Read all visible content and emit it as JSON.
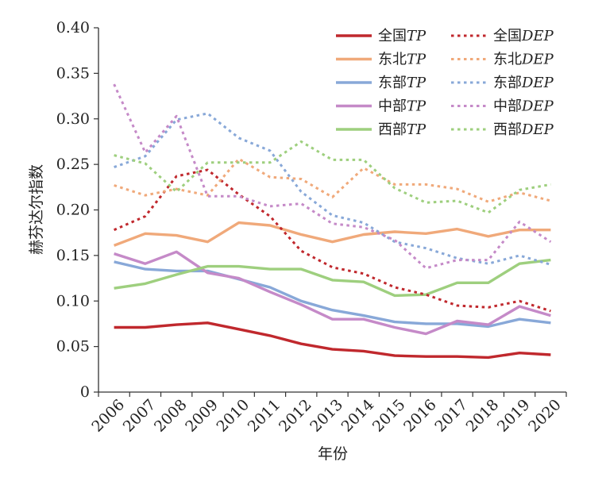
{
  "chart_data": {
    "type": "line",
    "title": "",
    "xlabel": "年份",
    "ylabel": "赫芬达尔指数",
    "ylim": [
      0,
      0.4
    ],
    "yticks": [
      "0",
      "0.05",
      "0.10",
      "0.15",
      "0.20",
      "0.25",
      "0.30",
      "0.35",
      "0.40"
    ],
    "grid": false,
    "legend_position": "top-right",
    "categories": [
      "2006",
      "2007",
      "2008",
      "2009",
      "2010",
      "2011",
      "2012",
      "2013",
      "2014",
      "2015",
      "2016",
      "2017",
      "2018",
      "2019",
      "2020"
    ],
    "series": [
      {
        "name": "全国TP",
        "region": "全国",
        "suffix": "TP",
        "color": "#c0282d",
        "dashed": false,
        "values": [
          0.071,
          0.071,
          0.074,
          0.076,
          0.069,
          0.062,
          0.053,
          0.047,
          0.045,
          0.04,
          0.039,
          0.039,
          0.038,
          0.043,
          0.041
        ]
      },
      {
        "name": "全国DEP",
        "region": "全国",
        "suffix": "DEP",
        "color": "#c0282d",
        "dashed": true,
        "values": [
          0.178,
          0.193,
          0.237,
          0.244,
          0.217,
          0.193,
          0.155,
          0.137,
          0.13,
          0.115,
          0.107,
          0.095,
          0.093,
          0.1,
          0.089
        ]
      },
      {
        "name": "东北TP",
        "region": "东北",
        "suffix": "TP",
        "color": "#f0a97a",
        "dashed": false,
        "values": [
          0.161,
          0.174,
          0.172,
          0.165,
          0.186,
          0.183,
          0.173,
          0.165,
          0.173,
          0.176,
          0.174,
          0.179,
          0.171,
          0.178,
          0.178
        ]
      },
      {
        "name": "东北DEP",
        "region": "东北",
        "suffix": "DEP",
        "color": "#f0a97a",
        "dashed": true,
        "values": [
          0.227,
          0.216,
          0.223,
          0.216,
          0.256,
          0.236,
          0.234,
          0.214,
          0.246,
          0.228,
          0.228,
          0.223,
          0.209,
          0.219,
          0.21
        ]
      },
      {
        "name": "东部TP",
        "region": "东部",
        "suffix": "TP",
        "color": "#88a8d8",
        "dashed": false,
        "values": [
          0.143,
          0.135,
          0.133,
          0.133,
          0.124,
          0.115,
          0.1,
          0.09,
          0.084,
          0.077,
          0.075,
          0.075,
          0.072,
          0.08,
          0.076
        ]
      },
      {
        "name": "东部DEP",
        "region": "东部",
        "suffix": "DEP",
        "color": "#88a8d8",
        "dashed": true,
        "values": [
          0.247,
          0.259,
          0.299,
          0.306,
          0.279,
          0.265,
          0.22,
          0.194,
          0.186,
          0.165,
          0.158,
          0.147,
          0.141,
          0.15,
          0.14
        ]
      },
      {
        "name": "中部TP",
        "region": "中部",
        "suffix": "TP",
        "color": "#c58ac8",
        "dashed": false,
        "values": [
          0.152,
          0.141,
          0.154,
          0.131,
          0.125,
          0.11,
          0.096,
          0.08,
          0.08,
          0.071,
          0.064,
          0.078,
          0.074,
          0.094,
          0.084
        ]
      },
      {
        "name": "中部DEP",
        "region": "中部",
        "suffix": "DEP",
        "color": "#c58ac8",
        "dashed": true,
        "values": [
          0.338,
          0.263,
          0.303,
          0.215,
          0.215,
          0.204,
          0.207,
          0.185,
          0.181,
          0.167,
          0.136,
          0.145,
          0.145,
          0.187,
          0.165
        ]
      },
      {
        "name": "西部TP",
        "region": "西部",
        "suffix": "TP",
        "color": "#9ecf7e",
        "dashed": false,
        "values": [
          0.114,
          0.119,
          0.129,
          0.138,
          0.138,
          0.135,
          0.135,
          0.123,
          0.121,
          0.106,
          0.107,
          0.12,
          0.12,
          0.141,
          0.145
        ]
      },
      {
        "name": "西部DEP",
        "region": "西部",
        "suffix": "DEP",
        "color": "#9ecf7e",
        "dashed": true,
        "values": [
          0.26,
          0.251,
          0.22,
          0.252,
          0.252,
          0.252,
          0.275,
          0.255,
          0.255,
          0.224,
          0.208,
          0.21,
          0.197,
          0.222,
          0.228
        ]
      }
    ]
  }
}
